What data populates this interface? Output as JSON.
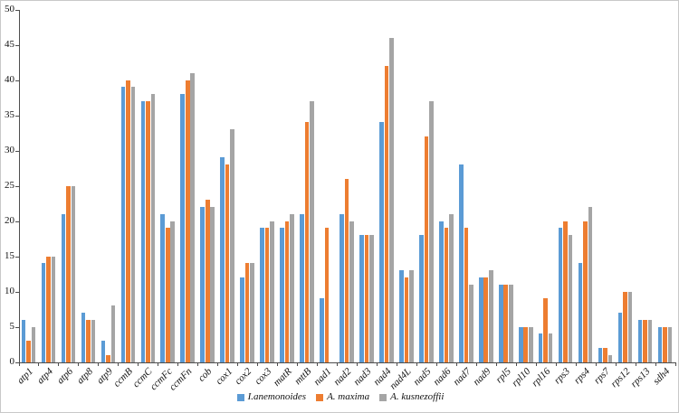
{
  "chart_data": {
    "type": "bar",
    "title": "",
    "xlabel": "",
    "ylabel": "",
    "ylim": [
      0,
      50
    ],
    "yticks": [
      0,
      5,
      10,
      15,
      20,
      25,
      30,
      35,
      40,
      45,
      50
    ],
    "grid": false,
    "legend_position": "bottom",
    "categories": [
      "atp1",
      "atp4",
      "atp6",
      "atp8",
      "atp9",
      "ccmB",
      "ccmC",
      "ccmFc",
      "ccmFn",
      "cob",
      "cox1",
      "cox2",
      "cox3",
      "matR",
      "mttB",
      "nad1",
      "nad2",
      "nad3",
      "nad4",
      "nad4L",
      "nad5",
      "nad6",
      "nad7",
      "nad9",
      "rpl5",
      "rpl10",
      "rpl16",
      "rps3",
      "rps4",
      "rps7",
      "rps12",
      "rps13",
      "sdh4"
    ],
    "series": [
      {
        "name": "I.anemonoides",
        "color": "#5B9BD5",
        "values": [
          6,
          14,
          21,
          7,
          3,
          39,
          37,
          21,
          38,
          22,
          29,
          12,
          19,
          19,
          21,
          9,
          21,
          18,
          34,
          13,
          18,
          20,
          28,
          12,
          11,
          5,
          4,
          19,
          14,
          2,
          7,
          6,
          5
        ]
      },
      {
        "name": "A. maxima",
        "color": "#ED7D31",
        "values": [
          3,
          15,
          25,
          6,
          1,
          40,
          37,
          19,
          40,
          23,
          28,
          14,
          19,
          20,
          34,
          19,
          26,
          18,
          42,
          12,
          32,
          19,
          19,
          12,
          11,
          5,
          9,
          20,
          20,
          2,
          10,
          6,
          5
        ]
      },
      {
        "name": "A. kusnezoffii",
        "color": "#A5A5A5",
        "values": [
          5,
          15,
          25,
          6,
          8,
          39,
          38,
          20,
          41,
          22,
          33,
          14,
          20,
          21,
          37,
          0,
          20,
          18,
          46,
          13,
          37,
          21,
          11,
          13,
          11,
          5,
          4,
          18,
          22,
          1,
          10,
          6,
          5
        ]
      }
    ],
    "axis_color": "#4d4d4d"
  }
}
